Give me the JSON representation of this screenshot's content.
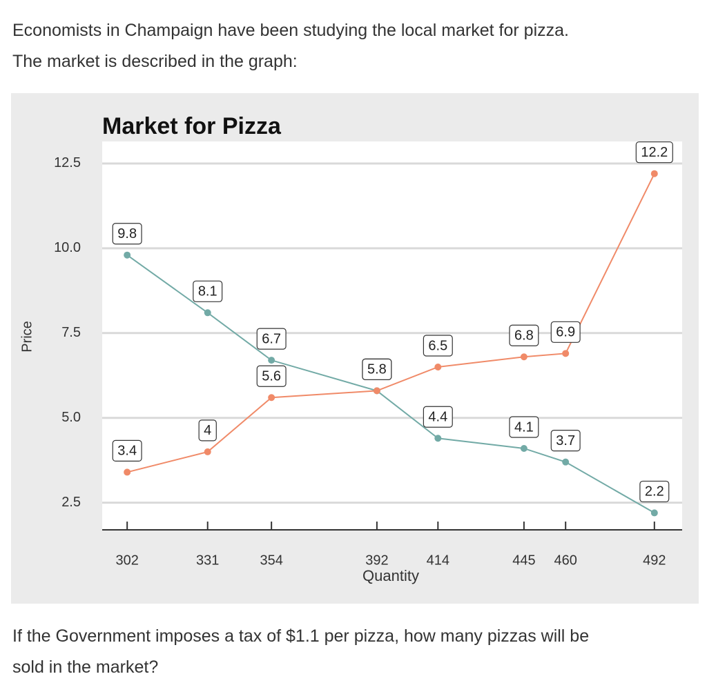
{
  "document": {
    "intro_lines": [
      "Economists in Champaign have been studying the local market for pizza.",
      "The market is described in the graph:"
    ],
    "question_lines": [
      "If the Government imposes a tax of $1.1 per pizza, how many pizzas will be",
      "sold in the market?"
    ]
  },
  "chart_data": {
    "type": "line",
    "title": "Market for Pizza",
    "x_label": "Quantity",
    "y_label": "Price",
    "x": [
      302,
      331,
      354,
      392,
      414,
      445,
      460,
      492
    ],
    "series": [
      {
        "color": "#72aaa6",
        "values": [
          9.8,
          8.1,
          6.7,
          5.8,
          4.4,
          4.1,
          3.7,
          2.2
        ]
      },
      {
        "color": "#f08a68",
        "values": [
          3.4,
          4,
          5.6,
          5.8,
          6.5,
          6.8,
          6.9,
          12.2
        ]
      }
    ],
    "xlim": [
      293,
      502
    ],
    "xticks": [
      302,
      331,
      354,
      392,
      414,
      445,
      460,
      492
    ],
    "ylim": [
      1.7,
      13.15
    ],
    "yticks": [
      {
        "value": 2.5,
        "label": "2.5"
      },
      {
        "value": 5,
        "label": "5.0"
      },
      7.5,
      {
        "value": 10,
        "label": "10.0"
      },
      12.5
    ],
    "grid": true
  }
}
